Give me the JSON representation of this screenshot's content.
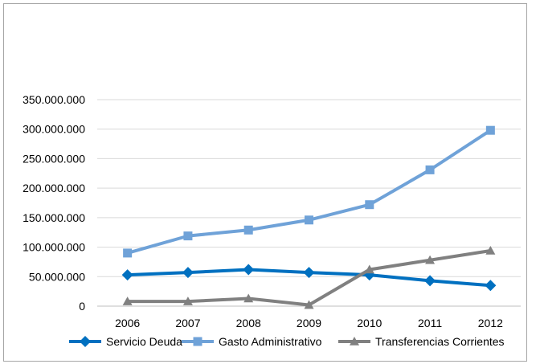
{
  "chart_data": {
    "type": "line",
    "title": "",
    "xlabel": "",
    "ylabel": "",
    "categories": [
      "2006",
      "2007",
      "2008",
      "2009",
      "2010",
      "2011",
      "2012"
    ],
    "ylim": [
      0,
      350000000
    ],
    "y_ticks": [
      0,
      50000000,
      100000000,
      150000000,
      200000000,
      250000000,
      300000000,
      350000000
    ],
    "y_tick_labels": [
      "0",
      "50.000.000",
      "100.000.000",
      "150.000.000",
      "200.000.000",
      "250.000.000",
      "300.000.000",
      "350.000.000"
    ],
    "grid": true,
    "legend_position": "bottom",
    "series": [
      {
        "name": "Servicio Deuda",
        "marker": "diamond",
        "color": "#0070c0",
        "values": [
          53000000,
          57000000,
          62000000,
          57000000,
          53000000,
          43000000,
          35000000
        ]
      },
      {
        "name": "Gasto Administrativo",
        "marker": "square",
        "color": "#6fa2d8",
        "values": [
          90000000,
          119000000,
          129000000,
          146000000,
          172000000,
          231000000,
          298000000
        ]
      },
      {
        "name": "Transferencias Corrientes",
        "marker": "triangle",
        "color": "#808080",
        "values": [
          8000000,
          8000000,
          13000000,
          2000000,
          62000000,
          78000000,
          94000000
        ]
      }
    ]
  }
}
